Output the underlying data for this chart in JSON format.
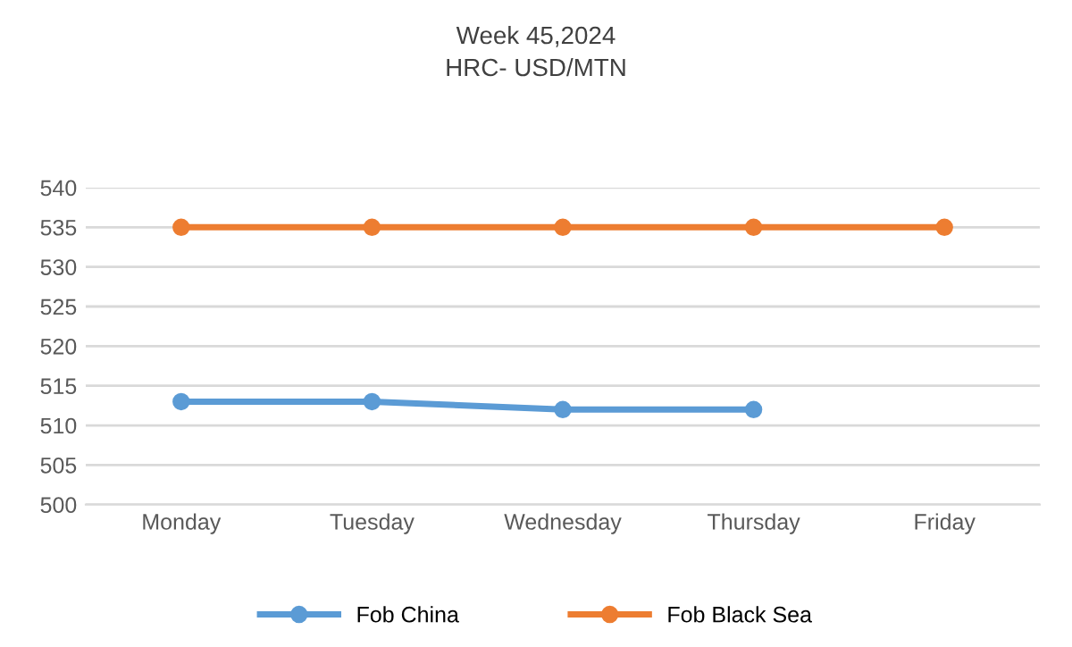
{
  "chart_data": {
    "type": "line",
    "title": "Week 45,2024\nHRC- USD/MTN",
    "categories": [
      "Monday",
      "Tuesday",
      "Wednesday",
      "Thursday",
      "Friday"
    ],
    "series": [
      {
        "name": "Fob China",
        "color": "#5b9bd5",
        "values": [
          513,
          513,
          512,
          512,
          null
        ]
      },
      {
        "name": "Fob Black Sea",
        "color": "#ed7d31",
        "values": [
          535,
          535,
          535,
          535,
          535
        ]
      }
    ],
    "ylim": [
      500,
      540
    ],
    "yticks": [
      500,
      505,
      510,
      515,
      520,
      525,
      530,
      535,
      540
    ],
    "grid": "y",
    "legend": "bottom",
    "marker": "circle",
    "line_style": "solid"
  }
}
